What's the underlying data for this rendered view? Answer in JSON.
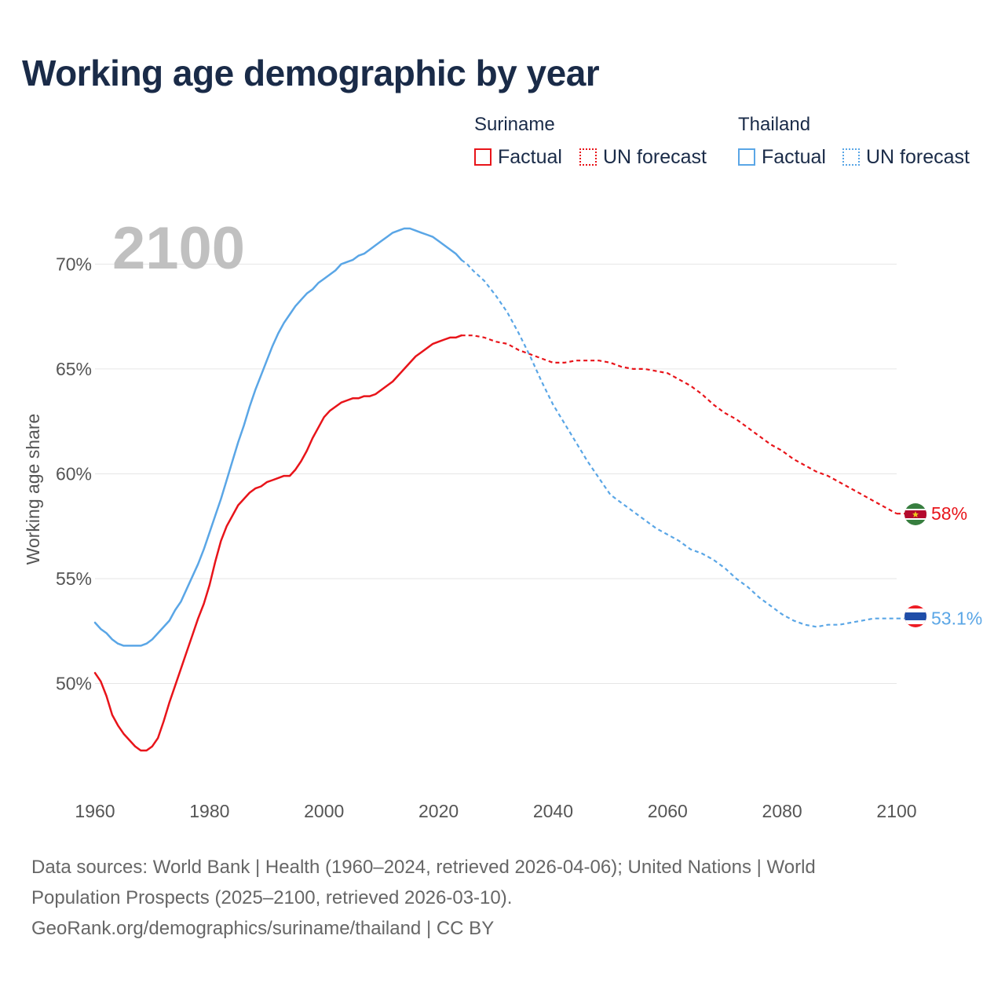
{
  "title": "Working age demographic by year",
  "legend": {
    "groups": [
      {
        "name": "Suriname",
        "color": "#e8141a",
        "factual_label": "Factual",
        "forecast_label": "UN forecast"
      },
      {
        "name": "Thailand",
        "color": "#5aa6e6",
        "factual_label": "Factual",
        "forecast_label": "UN forecast"
      }
    ]
  },
  "year_watermark": "2100",
  "chart_data": {
    "type": "line",
    "ylabel": "Working age share",
    "xlim": [
      1960,
      2100
    ],
    "ylim": [
      45,
      72
    ],
    "x_ticks": [
      "1960",
      "1980",
      "2000",
      "2020",
      "2040",
      "2060",
      "2080",
      "2100"
    ],
    "y_ticks": [
      "50%",
      "55%",
      "60%",
      "65%",
      "70%"
    ],
    "forecast_start": 2024,
    "series": [
      {
        "name": "Suriname",
        "color": "#e8141a",
        "end_label": "58%",
        "points": [
          [
            1960,
            50.5
          ],
          [
            1961,
            50.1
          ],
          [
            1962,
            49.4
          ],
          [
            1963,
            48.5
          ],
          [
            1964,
            48.0
          ],
          [
            1965,
            47.6
          ],
          [
            1966,
            47.3
          ],
          [
            1967,
            47.0
          ],
          [
            1968,
            46.8
          ],
          [
            1969,
            46.8
          ],
          [
            1970,
            47.0
          ],
          [
            1971,
            47.4
          ],
          [
            1972,
            48.2
          ],
          [
            1973,
            49.1
          ],
          [
            1974,
            49.9
          ],
          [
            1975,
            50.7
          ],
          [
            1976,
            51.5
          ],
          [
            1977,
            52.3
          ],
          [
            1978,
            53.1
          ],
          [
            1979,
            53.8
          ],
          [
            1980,
            54.7
          ],
          [
            1981,
            55.8
          ],
          [
            1982,
            56.8
          ],
          [
            1983,
            57.5
          ],
          [
            1984,
            58.0
          ],
          [
            1985,
            58.5
          ],
          [
            1986,
            58.8
          ],
          [
            1987,
            59.1
          ],
          [
            1988,
            59.3
          ],
          [
            1989,
            59.4
          ],
          [
            1990,
            59.6
          ],
          [
            1991,
            59.7
          ],
          [
            1992,
            59.8
          ],
          [
            1993,
            59.9
          ],
          [
            1994,
            59.9
          ],
          [
            1995,
            60.2
          ],
          [
            1996,
            60.6
          ],
          [
            1997,
            61.1
          ],
          [
            1998,
            61.7
          ],
          [
            1999,
            62.2
          ],
          [
            2000,
            62.7
          ],
          [
            2001,
            63.0
          ],
          [
            2002,
            63.2
          ],
          [
            2003,
            63.4
          ],
          [
            2004,
            63.5
          ],
          [
            2005,
            63.6
          ],
          [
            2006,
            63.6
          ],
          [
            2007,
            63.7
          ],
          [
            2008,
            63.7
          ],
          [
            2009,
            63.8
          ],
          [
            2010,
            64.0
          ],
          [
            2011,
            64.2
          ],
          [
            2012,
            64.4
          ],
          [
            2013,
            64.7
          ],
          [
            2014,
            65.0
          ],
          [
            2015,
            65.3
          ],
          [
            2016,
            65.6
          ],
          [
            2017,
            65.8
          ],
          [
            2018,
            66.0
          ],
          [
            2019,
            66.2
          ],
          [
            2020,
            66.3
          ],
          [
            2021,
            66.4
          ],
          [
            2022,
            66.5
          ],
          [
            2023,
            66.5
          ],
          [
            2024,
            66.6
          ],
          [
            2025,
            66.6
          ],
          [
            2026,
            66.6
          ],
          [
            2028,
            66.5
          ],
          [
            2030,
            66.3
          ],
          [
            2032,
            66.2
          ],
          [
            2034,
            65.9
          ],
          [
            2036,
            65.7
          ],
          [
            2038,
            65.5
          ],
          [
            2040,
            65.3
          ],
          [
            2042,
            65.3
          ],
          [
            2044,
            65.4
          ],
          [
            2046,
            65.4
          ],
          [
            2048,
            65.4
          ],
          [
            2050,
            65.3
          ],
          [
            2052,
            65.1
          ],
          [
            2054,
            65.0
          ],
          [
            2056,
            65.0
          ],
          [
            2058,
            64.9
          ],
          [
            2060,
            64.8
          ],
          [
            2062,
            64.5
          ],
          [
            2064,
            64.2
          ],
          [
            2066,
            63.8
          ],
          [
            2068,
            63.3
          ],
          [
            2070,
            62.9
          ],
          [
            2072,
            62.6
          ],
          [
            2074,
            62.2
          ],
          [
            2076,
            61.8
          ],
          [
            2078,
            61.4
          ],
          [
            2080,
            61.1
          ],
          [
            2082,
            60.7
          ],
          [
            2084,
            60.4
          ],
          [
            2086,
            60.1
          ],
          [
            2088,
            59.9
          ],
          [
            2090,
            59.6
          ],
          [
            2092,
            59.3
          ],
          [
            2094,
            59.0
          ],
          [
            2096,
            58.7
          ],
          [
            2098,
            58.4
          ],
          [
            2100,
            58.1
          ]
        ]
      },
      {
        "name": "Thailand",
        "color": "#5aa6e6",
        "end_label": "53.1%",
        "points": [
          [
            1960,
            52.9
          ],
          [
            1961,
            52.6
          ],
          [
            1962,
            52.4
          ],
          [
            1963,
            52.1
          ],
          [
            1964,
            51.9
          ],
          [
            1965,
            51.8
          ],
          [
            1966,
            51.8
          ],
          [
            1967,
            51.8
          ],
          [
            1968,
            51.8
          ],
          [
            1969,
            51.9
          ],
          [
            1970,
            52.1
          ],
          [
            1971,
            52.4
          ],
          [
            1972,
            52.7
          ],
          [
            1973,
            53.0
          ],
          [
            1974,
            53.5
          ],
          [
            1975,
            53.9
          ],
          [
            1976,
            54.5
          ],
          [
            1977,
            55.1
          ],
          [
            1978,
            55.7
          ],
          [
            1979,
            56.4
          ],
          [
            1980,
            57.2
          ],
          [
            1981,
            58.0
          ],
          [
            1982,
            58.8
          ],
          [
            1983,
            59.7
          ],
          [
            1984,
            60.6
          ],
          [
            1985,
            61.5
          ],
          [
            1986,
            62.3
          ],
          [
            1987,
            63.2
          ],
          [
            1988,
            64.0
          ],
          [
            1989,
            64.7
          ],
          [
            1990,
            65.4
          ],
          [
            1991,
            66.1
          ],
          [
            1992,
            66.7
          ],
          [
            1993,
            67.2
          ],
          [
            1994,
            67.6
          ],
          [
            1995,
            68.0
          ],
          [
            1996,
            68.3
          ],
          [
            1997,
            68.6
          ],
          [
            1998,
            68.8
          ],
          [
            1999,
            69.1
          ],
          [
            2000,
            69.3
          ],
          [
            2001,
            69.5
          ],
          [
            2002,
            69.7
          ],
          [
            2003,
            70.0
          ],
          [
            2004,
            70.1
          ],
          [
            2005,
            70.2
          ],
          [
            2006,
            70.4
          ],
          [
            2007,
            70.5
          ],
          [
            2008,
            70.7
          ],
          [
            2009,
            70.9
          ],
          [
            2010,
            71.1
          ],
          [
            2011,
            71.3
          ],
          [
            2012,
            71.5
          ],
          [
            2013,
            71.6
          ],
          [
            2014,
            71.7
          ],
          [
            2015,
            71.7
          ],
          [
            2016,
            71.6
          ],
          [
            2017,
            71.5
          ],
          [
            2018,
            71.4
          ],
          [
            2019,
            71.3
          ],
          [
            2020,
            71.1
          ],
          [
            2021,
            70.9
          ],
          [
            2022,
            70.7
          ],
          [
            2023,
            70.5
          ],
          [
            2024,
            70.2
          ],
          [
            2025,
            70.0
          ],
          [
            2026,
            69.7
          ],
          [
            2028,
            69.2
          ],
          [
            2030,
            68.5
          ],
          [
            2032,
            67.7
          ],
          [
            2034,
            66.7
          ],
          [
            2036,
            65.6
          ],
          [
            2038,
            64.4
          ],
          [
            2040,
            63.3
          ],
          [
            2042,
            62.4
          ],
          [
            2044,
            61.5
          ],
          [
            2046,
            60.6
          ],
          [
            2048,
            59.8
          ],
          [
            2050,
            59.0
          ],
          [
            2052,
            58.6
          ],
          [
            2054,
            58.2
          ],
          [
            2056,
            57.8
          ],
          [
            2058,
            57.4
          ],
          [
            2060,
            57.1
          ],
          [
            2062,
            56.8
          ],
          [
            2064,
            56.4
          ],
          [
            2066,
            56.2
          ],
          [
            2068,
            55.9
          ],
          [
            2070,
            55.5
          ],
          [
            2072,
            55.0
          ],
          [
            2074,
            54.6
          ],
          [
            2076,
            54.1
          ],
          [
            2078,
            53.7
          ],
          [
            2080,
            53.3
          ],
          [
            2082,
            53.0
          ],
          [
            2084,
            52.8
          ],
          [
            2086,
            52.7
          ],
          [
            2088,
            52.8
          ],
          [
            2090,
            52.8
          ],
          [
            2092,
            52.9
          ],
          [
            2094,
            53.0
          ],
          [
            2096,
            53.1
          ],
          [
            2098,
            53.1
          ],
          [
            2100,
            53.1
          ]
        ]
      }
    ]
  },
  "footer": {
    "line1": "Data sources: World Bank | Health (1960–2024, retrieved 2026-04-06); United Nations | World",
    "line2": "Population Prospects (2025–2100, retrieved 2026-03-10).",
    "line3": "GeoRank.org/demographics/suriname/thailand | CC BY"
  }
}
